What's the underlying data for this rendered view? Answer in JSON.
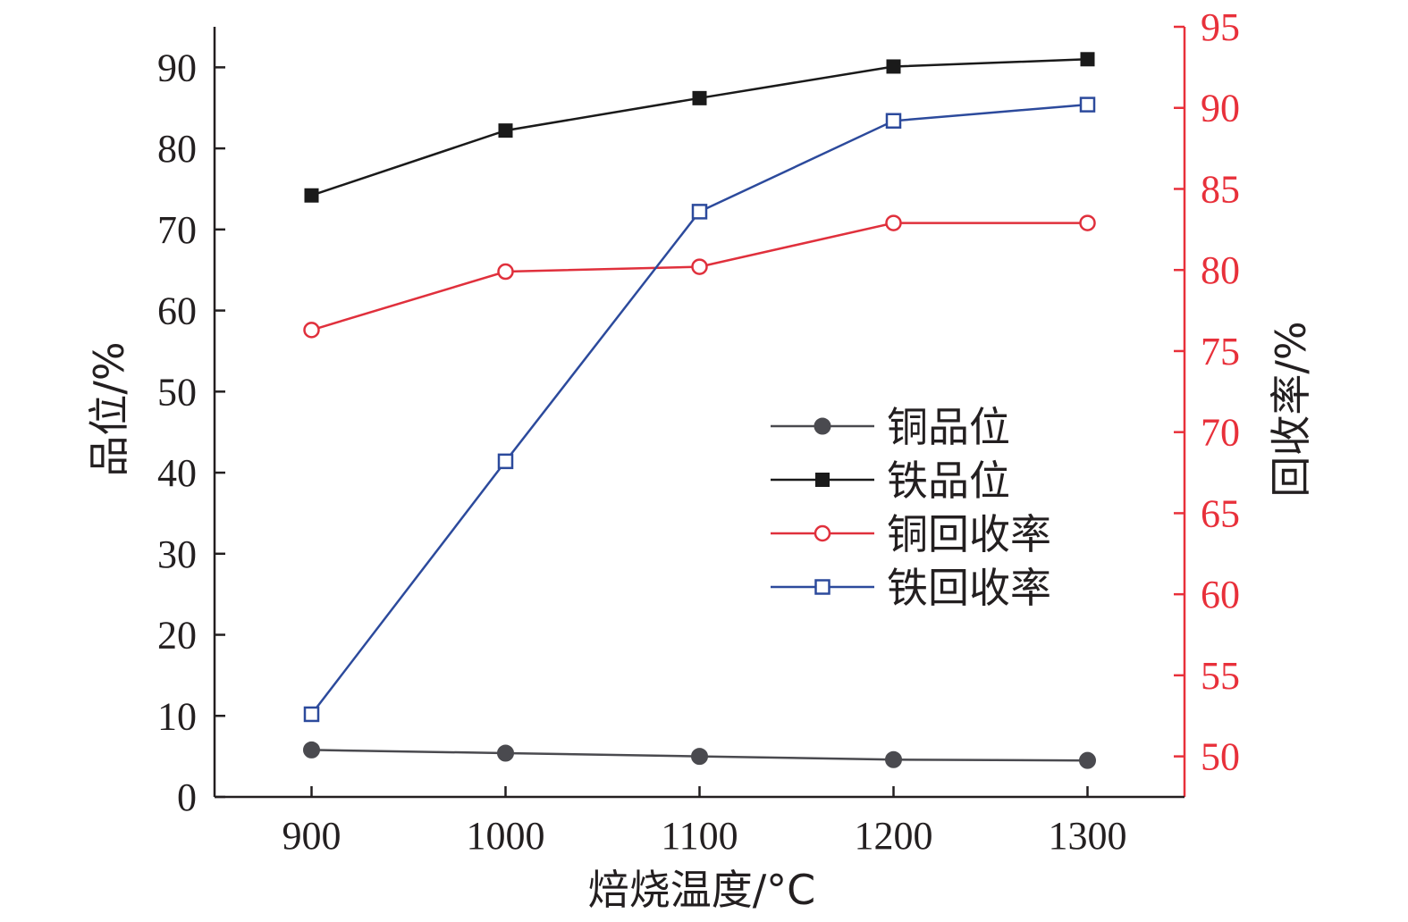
{
  "chart_data": {
    "type": "line",
    "x": [
      900,
      1000,
      1100,
      1200,
      1300
    ],
    "x_tick_labels": [
      "900",
      "1000",
      "1100",
      "1200",
      "1300"
    ],
    "xlabel": "焙烧温度/°C",
    "xlim": [
      850,
      1350
    ],
    "y_left": {
      "label": "品位/%",
      "lim": [
        0,
        95
      ],
      "ticks": [
        0,
        10,
        20,
        30,
        40,
        50,
        60,
        70,
        80,
        90
      ],
      "tick_labels": [
        "0",
        "10",
        "20",
        "30",
        "40",
        "50",
        "60",
        "70",
        "80",
        "90"
      ],
      "color": "#231f20"
    },
    "y_right": {
      "label": "回收率/%",
      "lim": [
        47.5,
        95
      ],
      "ticks": [
        50,
        55,
        60,
        65,
        70,
        75,
        80,
        85,
        90,
        95
      ],
      "tick_labels": [
        "50",
        "55",
        "60",
        "65",
        "70",
        "75",
        "80",
        "85",
        "90",
        "95"
      ],
      "color": "#e8303a"
    },
    "series": [
      {
        "name": "铜品位",
        "axis": "left",
        "color": "#4a4a4f",
        "marker": "circle-filled",
        "values": [
          5.8,
          5.4,
          5.0,
          4.6,
          4.5
        ]
      },
      {
        "name": "铁品位",
        "axis": "left",
        "color": "#1a1a1a",
        "marker": "square-filled",
        "values": [
          74.2,
          82.2,
          86.2,
          90.1,
          91.0
        ]
      },
      {
        "name": "铜回收率",
        "axis": "right",
        "color": "#e0303c",
        "marker": "circle-open",
        "values": [
          76.3,
          79.9,
          80.2,
          82.9,
          82.9
        ]
      },
      {
        "name": "铁回收率",
        "axis": "right",
        "color": "#2c4a9c",
        "marker": "square-open",
        "values": [
          52.6,
          68.2,
          83.6,
          89.2,
          90.2
        ]
      }
    ],
    "legend_position": "center-right",
    "grid": false
  }
}
